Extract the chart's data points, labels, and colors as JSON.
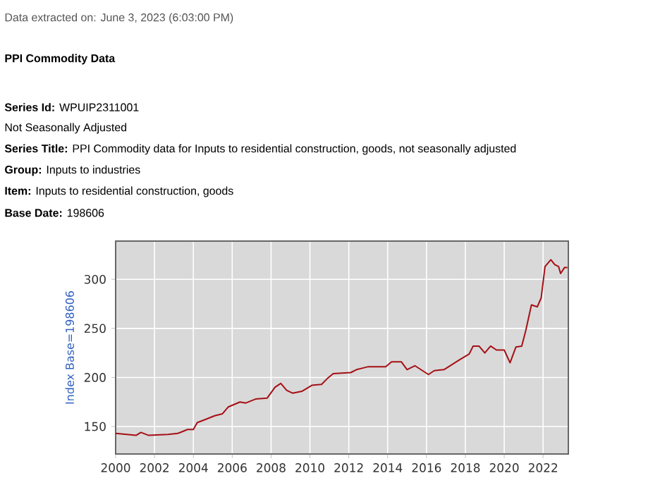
{
  "chart_data": {
    "type": "line",
    "title": "PPI Commodity Data",
    "annotations": [
      "Data extracted on: June 3, 2023 (6:03:00 PM)",
      "**Series Id:** WPUIP2311001",
      "Not Seasonally Adjusted",
      "**Series Title:** PPI Commodity data for Inputs to residential construction, goods, not seasonally adjusted",
      "**Group:** Inputs to industries",
      "**Item:** Inputs to residential construction, goods",
      "**Base Date:** 198606"
    ],
    "ylabel": "Index Base=198606",
    "x": [
      2000,
      2001.05,
      2001.3,
      2001.7,
      2002.7,
      2003.2,
      2003.7,
      2004,
      2004.2,
      2004.6,
      2005.1,
      2005.5,
      2005.8,
      2006.4,
      2006.7,
      2007.2,
      2007.8,
      2008.2,
      2008.5,
      2008.8,
      2009.1,
      2009.6,
      2010.1,
      2010.6,
      2010.9,
      2011.2,
      2012.1,
      2012.4,
      2013,
      2013.9,
      2014.2,
      2014.7,
      2015,
      2015.4,
      2016.1,
      2016.4,
      2016.9,
      2017.3,
      2017.7,
      2018.2,
      2018.4,
      2018.7,
      2019,
      2019.3,
      2019.6,
      2020,
      2020.3,
      2020.6,
      2020.9,
      2021.1,
      2021.4,
      2021.7,
      2021.9,
      2022.1,
      2022.4,
      2022.6,
      2022.8,
      2022.9,
      2023.1,
      2023.25
    ],
    "values": [
      143,
      141,
      144,
      141,
      142,
      143,
      147,
      147,
      154,
      157,
      161,
      163,
      170,
      175,
      174,
      178,
      179,
      190,
      194,
      187,
      184,
      186,
      192,
      193,
      199,
      204,
      205,
      208,
      211,
      211,
      216,
      216,
      208,
      212,
      203,
      207,
      208,
      213,
      218,
      224,
      232,
      232,
      225,
      232,
      228,
      228,
      215,
      231,
      232,
      247,
      274,
      272,
      281,
      313,
      320,
      315,
      313,
      306,
      312,
      312
    ],
    "color": "#a50f15",
    "xlim": [
      2000,
      2023.3
    ],
    "ylim": [
      122,
      339
    ],
    "xticks": [
      2000,
      2002,
      2004,
      2006,
      2008,
      2010,
      2012,
      2014,
      2016,
      2018,
      2020,
      2022
    ],
    "yticks": [
      150,
      200,
      250,
      300
    ],
    "grid": true,
    "marker": "none",
    "line_style": "solid"
  }
}
